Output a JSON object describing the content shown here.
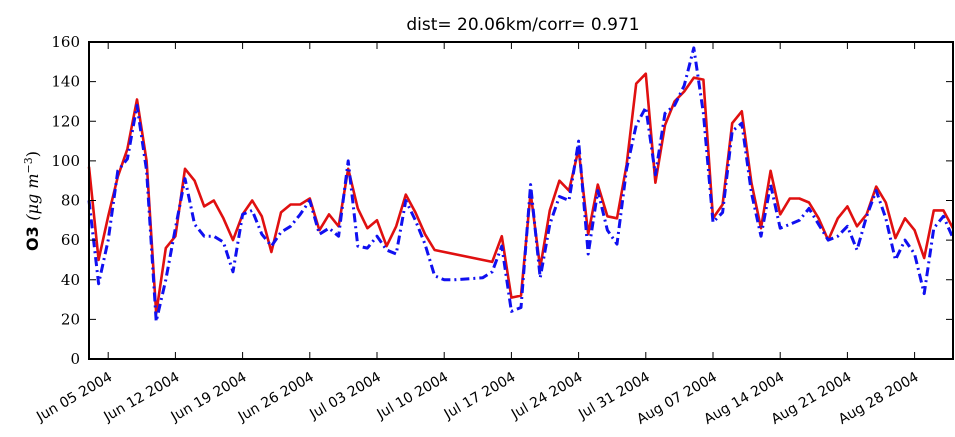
{
  "chart_data": {
    "type": "line",
    "title": "dist= 20.06km/corr= 0.971",
    "ylabel_main": "O3",
    "ylabel_unit": "(μg m",
    "ylabel_exp": "−3",
    "ylabel_close": ")",
    "xlabel": "",
    "ylim": [
      0,
      160
    ],
    "xlim": [
      "2004-06-03",
      "2004-09-01"
    ],
    "yticks": [
      0,
      20,
      40,
      60,
      80,
      100,
      120,
      140,
      160
    ],
    "xticks": [
      {
        "date": "2004-06-05",
        "label": "Jun 05 2004"
      },
      {
        "date": "2004-06-12",
        "label": "Jun 12 2004"
      },
      {
        "date": "2004-06-19",
        "label": "Jun 19 2004"
      },
      {
        "date": "2004-06-26",
        "label": "Jun 26 2004"
      },
      {
        "date": "2004-07-03",
        "label": "Jul 03 2004"
      },
      {
        "date": "2004-07-10",
        "label": "Jul 10 2004"
      },
      {
        "date": "2004-07-17",
        "label": "Jul 17 2004"
      },
      {
        "date": "2004-07-24",
        "label": "Jul 24 2004"
      },
      {
        "date": "2004-07-31",
        "label": "Jul 31 2004"
      },
      {
        "date": "2004-08-07",
        "label": "Aug 07 2004"
      },
      {
        "date": "2004-08-14",
        "label": "Aug 14 2004"
      },
      {
        "date": "2004-08-21",
        "label": "Aug 21 2004"
      },
      {
        "date": "2004-08-28",
        "label": "Aug 28 2004"
      }
    ],
    "grid": false,
    "series": [
      {
        "style": "solid",
        "color": "#e01010",
        "points": [
          [
            "2004-06-03",
            97
          ],
          [
            "2004-06-04",
            50
          ],
          [
            "2004-06-05",
            72
          ],
          [
            "2004-06-06",
            92
          ],
          [
            "2004-06-07",
            106
          ],
          [
            "2004-06-08",
            131
          ],
          [
            "2004-06-09",
            100
          ],
          [
            "2004-06-10",
            23
          ],
          [
            "2004-06-11",
            56
          ],
          [
            "2004-06-12",
            62
          ],
          [
            "2004-06-13",
            96
          ],
          [
            "2004-06-14",
            90
          ],
          [
            "2004-06-15",
            77
          ],
          [
            "2004-06-16",
            80
          ],
          [
            "2004-06-17",
            71
          ],
          [
            "2004-06-18",
            60
          ],
          [
            "2004-06-19",
            73
          ],
          [
            "2004-06-20",
            80
          ],
          [
            "2004-06-21",
            72
          ],
          [
            "2004-06-22",
            54
          ],
          [
            "2004-06-23",
            74
          ],
          [
            "2004-06-24",
            78
          ],
          [
            "2004-06-25",
            78
          ],
          [
            "2004-06-26",
            81
          ],
          [
            "2004-06-27",
            65
          ],
          [
            "2004-06-28",
            73
          ],
          [
            "2004-06-29",
            67
          ],
          [
            "2004-06-30",
            96
          ],
          [
            "2004-07-01",
            76
          ],
          [
            "2004-07-02",
            66
          ],
          [
            "2004-07-03",
            70
          ],
          [
            "2004-07-04",
            57
          ],
          [
            "2004-07-05",
            67
          ],
          [
            "2004-07-06",
            83
          ],
          [
            "2004-07-07",
            74
          ],
          [
            "2004-07-08",
            63
          ],
          [
            "2004-07-09",
            55
          ],
          [
            "2004-07-15",
            49
          ],
          [
            "2004-07-16",
            62
          ],
          [
            "2004-07-17",
            31
          ],
          [
            "2004-07-18",
            32
          ],
          [
            "2004-07-19",
            84
          ],
          [
            "2004-07-20",
            46
          ],
          [
            "2004-07-21",
            75
          ],
          [
            "2004-07-22",
            90
          ],
          [
            "2004-07-23",
            85
          ],
          [
            "2004-07-24",
            106
          ],
          [
            "2004-07-25",
            63
          ],
          [
            "2004-07-26",
            88
          ],
          [
            "2004-07-27",
            72
          ],
          [
            "2004-07-28",
            71
          ],
          [
            "2004-07-29",
            98
          ],
          [
            "2004-07-30",
            139
          ],
          [
            "2004-07-31",
            144
          ],
          [
            "2004-08-01",
            89
          ],
          [
            "2004-08-02",
            118
          ],
          [
            "2004-08-03",
            130
          ],
          [
            "2004-08-04",
            135
          ],
          [
            "2004-08-05",
            142
          ],
          [
            "2004-08-06",
            141
          ],
          [
            "2004-08-07",
            71
          ],
          [
            "2004-08-08",
            78
          ],
          [
            "2004-08-09",
            119
          ],
          [
            "2004-08-10",
            125
          ],
          [
            "2004-08-11",
            89
          ],
          [
            "2004-08-12",
            66
          ],
          [
            "2004-08-13",
            95
          ],
          [
            "2004-08-14",
            73
          ],
          [
            "2004-08-15",
            81
          ],
          [
            "2004-08-16",
            81
          ],
          [
            "2004-08-17",
            79
          ],
          [
            "2004-08-18",
            71
          ],
          [
            "2004-08-19",
            60
          ],
          [
            "2004-08-20",
            71
          ],
          [
            "2004-08-21",
            77
          ],
          [
            "2004-08-22",
            67
          ],
          [
            "2004-08-23",
            73
          ],
          [
            "2004-08-24",
            87
          ],
          [
            "2004-08-25",
            79
          ],
          [
            "2004-08-26",
            61
          ],
          [
            "2004-08-27",
            71
          ],
          [
            "2004-08-28",
            65
          ],
          [
            "2004-08-29",
            51
          ],
          [
            "2004-08-30",
            75
          ],
          [
            "2004-08-31",
            75
          ],
          [
            "2004-09-01",
            66
          ]
        ]
      },
      {
        "style": "dashdot",
        "color": "#1010f0",
        "points": [
          [
            "2004-06-03",
            80
          ],
          [
            "2004-06-04",
            38
          ],
          [
            "2004-06-05",
            60
          ],
          [
            "2004-06-06",
            95
          ],
          [
            "2004-06-07",
            101
          ],
          [
            "2004-06-08",
            128
          ],
          [
            "2004-06-09",
            95
          ],
          [
            "2004-06-10",
            19
          ],
          [
            "2004-06-11",
            40
          ],
          [
            "2004-06-12",
            66
          ],
          [
            "2004-06-13",
            91
          ],
          [
            "2004-06-14",
            68
          ],
          [
            "2004-06-15",
            62
          ],
          [
            "2004-06-16",
            62
          ],
          [
            "2004-06-17",
            59
          ],
          [
            "2004-06-18",
            44
          ],
          [
            "2004-06-19",
            73
          ],
          [
            "2004-06-20",
            75
          ],
          [
            "2004-06-21",
            63
          ],
          [
            "2004-06-22",
            57
          ],
          [
            "2004-06-23",
            64
          ],
          [
            "2004-06-24",
            67
          ],
          [
            "2004-06-25",
            73
          ],
          [
            "2004-06-26",
            80
          ],
          [
            "2004-06-27",
            63
          ],
          [
            "2004-06-28",
            66
          ],
          [
            "2004-06-29",
            62
          ],
          [
            "2004-06-30",
            100
          ],
          [
            "2004-07-01",
            57
          ],
          [
            "2004-07-02",
            56
          ],
          [
            "2004-07-03",
            62
          ],
          [
            "2004-07-04",
            55
          ],
          [
            "2004-07-05",
            53
          ],
          [
            "2004-07-06",
            80
          ],
          [
            "2004-07-07",
            70
          ],
          [
            "2004-07-08",
            58
          ],
          [
            "2004-07-09",
            42
          ],
          [
            "2004-07-10",
            40
          ],
          [
            "2004-07-11",
            40
          ],
          [
            "2004-07-14",
            41
          ],
          [
            "2004-07-15",
            44
          ],
          [
            "2004-07-16",
            57
          ],
          [
            "2004-07-17",
            24
          ],
          [
            "2004-07-18",
            26
          ],
          [
            "2004-07-19",
            88
          ],
          [
            "2004-07-20",
            41
          ],
          [
            "2004-07-21",
            68
          ],
          [
            "2004-07-22",
            82
          ],
          [
            "2004-07-23",
            80
          ],
          [
            "2004-07-24",
            110
          ],
          [
            "2004-07-25",
            53
          ],
          [
            "2004-07-26",
            85
          ],
          [
            "2004-07-27",
            65
          ],
          [
            "2004-07-28",
            58
          ],
          [
            "2004-07-29",
            96
          ],
          [
            "2004-07-30",
            118
          ],
          [
            "2004-07-31",
            127
          ],
          [
            "2004-08-01",
            93
          ],
          [
            "2004-08-02",
            124
          ],
          [
            "2004-08-03",
            128
          ],
          [
            "2004-08-04",
            138
          ],
          [
            "2004-08-05",
            157
          ],
          [
            "2004-08-06",
            124
          ],
          [
            "2004-08-07",
            69
          ],
          [
            "2004-08-08",
            74
          ],
          [
            "2004-08-09",
            115
          ],
          [
            "2004-08-10",
            119
          ],
          [
            "2004-08-11",
            84
          ],
          [
            "2004-08-12",
            62
          ],
          [
            "2004-08-13",
            88
          ],
          [
            "2004-08-14",
            66
          ],
          [
            "2004-08-15",
            68
          ],
          [
            "2004-08-16",
            70
          ],
          [
            "2004-08-17",
            76
          ],
          [
            "2004-08-18",
            68
          ],
          [
            "2004-08-19",
            60
          ],
          [
            "2004-08-20",
            62
          ],
          [
            "2004-08-21",
            67
          ],
          [
            "2004-08-22",
            55
          ],
          [
            "2004-08-23",
            72
          ],
          [
            "2004-08-24",
            85
          ],
          [
            "2004-08-25",
            71
          ],
          [
            "2004-08-26",
            50
          ],
          [
            "2004-08-27",
            60
          ],
          [
            "2004-08-28",
            53
          ],
          [
            "2004-08-29",
            33
          ],
          [
            "2004-08-30",
            66
          ],
          [
            "2004-08-31",
            72
          ],
          [
            "2004-09-01",
            61
          ]
        ]
      }
    ]
  }
}
